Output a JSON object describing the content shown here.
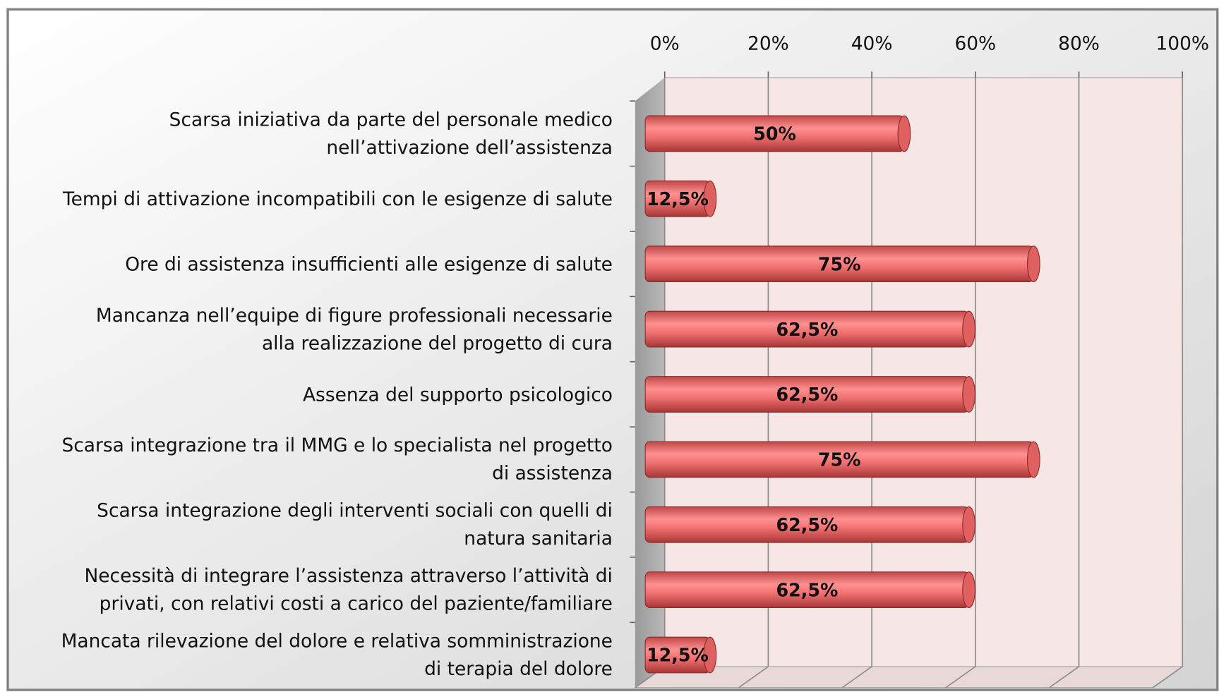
{
  "chart_data": {
    "type": "bar",
    "orientation": "horizontal",
    "categories": [
      "Scarsa iniziativa da parte del personale medico\nnell’attivazione dell’assistenza",
      "Tempi di attivazione incompatibili con le esigenze di salute",
      "Ore di assistenza insufficienti alle esigenze di salute",
      "Mancanza nell’equipe di figure professionali necessarie\nalla realizzazione del progetto di cura",
      "Assenza del supporto psicologico",
      "Scarsa integrazione tra il MMG e lo specialista nel progetto\ndi assistenza",
      "Scarsa integrazione degli interventi sociali con quelli di\nnatura sanitaria",
      "Necessità di integrare l’assistenza attraverso l’attività di\nprivati, con relativi costi a carico del paziente/familiare",
      "Mancata rilevazione del dolore e relativa somministrazione\ndi terapia del dolore"
    ],
    "values": [
      50,
      12.5,
      75,
      62.5,
      62.5,
      75,
      62.5,
      62.5,
      12.5
    ],
    "value_labels": [
      "50%",
      "12,5%",
      "75%",
      "62,5%",
      "62,5%",
      "75%",
      "62,5%",
      "62,5%",
      "12,5%"
    ],
    "color": "#f07070",
    "xlim": [
      0,
      100
    ],
    "xticks": [
      {
        "value": 0,
        "label": "0%"
      },
      {
        "value": 20,
        "label": "20%"
      },
      {
        "value": 40,
        "label": "40%"
      },
      {
        "value": 60,
        "label": "60%"
      },
      {
        "value": 80,
        "label": "80%"
      },
      {
        "value": 100,
        "label": "100%"
      }
    ],
    "grid": true
  }
}
